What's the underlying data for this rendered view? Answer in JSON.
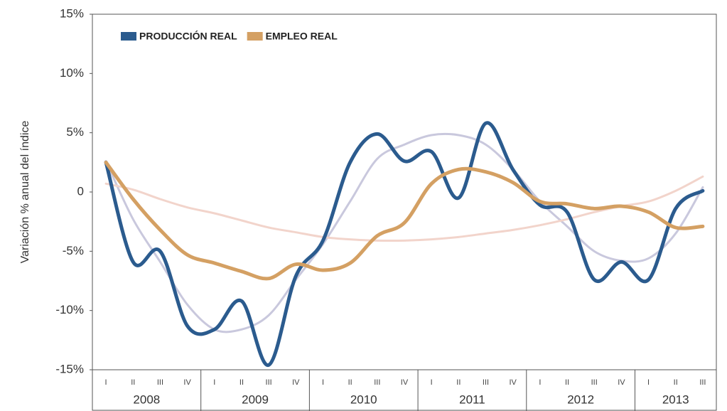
{
  "chart_data": {
    "type": "line",
    "y_label": "Variación % anual del índice",
    "categories": [
      "I",
      "II",
      "III",
      "IV",
      "I",
      "II",
      "III",
      "IV",
      "I",
      "II",
      "III",
      "IV",
      "I",
      "II",
      "III",
      "IV",
      "I",
      "II",
      "III",
      "IV",
      "I",
      "II",
      "III"
    ],
    "years": [
      "2008",
      "2009",
      "2010",
      "2011",
      "2012",
      "2013"
    ],
    "series": [
      {
        "color": "#c9c8dd",
        "values": [
          2.6,
          -2.3,
          -5.9,
          -9.5,
          -11.6,
          -11.6,
          -10.4,
          -7.4,
          -4.4,
          -0.8,
          2.8,
          4.0,
          4.8,
          4.8,
          4.0,
          1.9,
          -0.8,
          -2.9,
          -5.0,
          -5.8,
          -5.6,
          -3.5,
          0.4
        ]
      },
      {
        "color": "#f2d4cb",
        "values": [
          0.7,
          0.2,
          -0.6,
          -1.3,
          -1.8,
          -2.4,
          -3.0,
          -3.4,
          -3.8,
          -4.0,
          -4.1,
          -4.1,
          -4.0,
          -3.8,
          -3.5,
          -3.2,
          -2.8,
          -2.3,
          -1.7,
          -1.2,
          -0.8,
          0.1,
          1.3
        ]
      },
      {
        "name": "PRODUCCIÓN REAL",
        "color": "#2b5b8e",
        "values": [
          2.5,
          -5.9,
          -5.0,
          -11.3,
          -11.6,
          -9.2,
          -14.6,
          -7.1,
          -4.1,
          2.5,
          4.9,
          2.6,
          3.4,
          -0.5,
          5.8,
          1.9,
          -1.1,
          -1.7,
          -7.4,
          -5.9,
          -7.4,
          -1.4,
          0.1
        ]
      },
      {
        "name": "EMPLEO REAL",
        "color": "#d4a063",
        "values": [
          2.5,
          -0.6,
          -3.2,
          -5.3,
          -6.0,
          -6.7,
          -7.3,
          -6.1,
          -6.6,
          -6.0,
          -3.7,
          -2.6,
          0.7,
          1.9,
          1.7,
          0.8,
          -0.8,
          -1.0,
          -1.4,
          -1.2,
          -1.7,
          -3.0,
          -2.9
        ]
      }
    ],
    "ylim": [
      -15,
      15
    ],
    "yticks": [
      {
        "value": -15,
        "label": "-15%"
      },
      {
        "value": -10,
        "label": "-10%"
      },
      {
        "value": -5,
        "label": "-5%"
      },
      0,
      {
        "value": 5,
        "label": "5%"
      },
      {
        "value": 10,
        "label": "10%"
      },
      {
        "value": 15,
        "label": "15%"
      }
    ],
    "legend": "top-left"
  }
}
